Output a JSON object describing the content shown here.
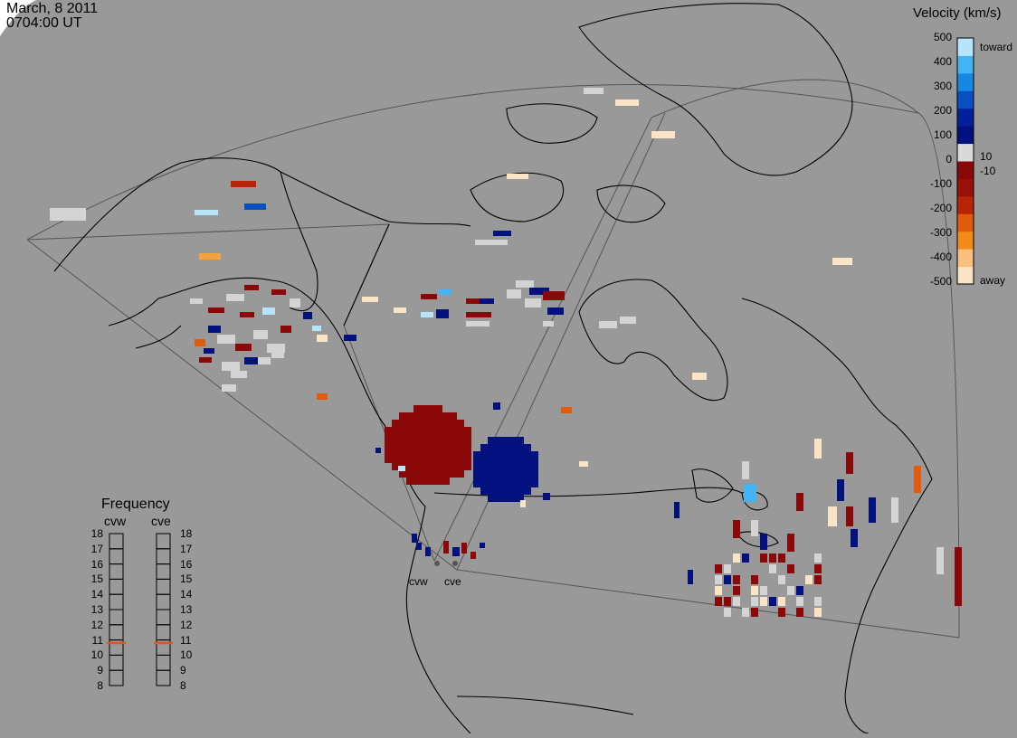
{
  "title": {
    "date": "March, 8 2011",
    "time": "0704:00 UT"
  },
  "colorbar": {
    "title": "Velocity (km/s)",
    "ticks": [
      "500",
      "400",
      "300",
      "200",
      "100",
      "10",
      "0",
      "-10",
      "-100",
      "-200",
      "-300",
      "-400",
      "-500"
    ],
    "toward_label": "toward",
    "away_label": "away",
    "colors": [
      "#fbe4c6",
      "#f9c07e",
      "#f38b1a",
      "#e25b0c",
      "#b82407",
      "#981008",
      "#8b0808",
      "#d9d9d9",
      "#02117e",
      "#031f9a",
      "#0a4fc0",
      "#1588e4",
      "#45b4f5",
      "#b6e4fb"
    ]
  },
  "frequency": {
    "title": "Frequency",
    "radars": [
      "cvw",
      "cve"
    ],
    "ticks": [
      "18",
      "17",
      "16",
      "15",
      "14",
      "13",
      "12",
      "11",
      "10",
      "9",
      "8"
    ],
    "selected_mhz": {
      "cvw": 10.8,
      "cve": 10.8
    },
    "marker_color": "#e8511a"
  },
  "radar_labels": [
    "cvw",
    "cve"
  ],
  "colors": {
    "background": "#999999",
    "land_outline": "#000000",
    "fov_outline": "#555555",
    "ground_scatter": "#d4d4d4"
  }
}
